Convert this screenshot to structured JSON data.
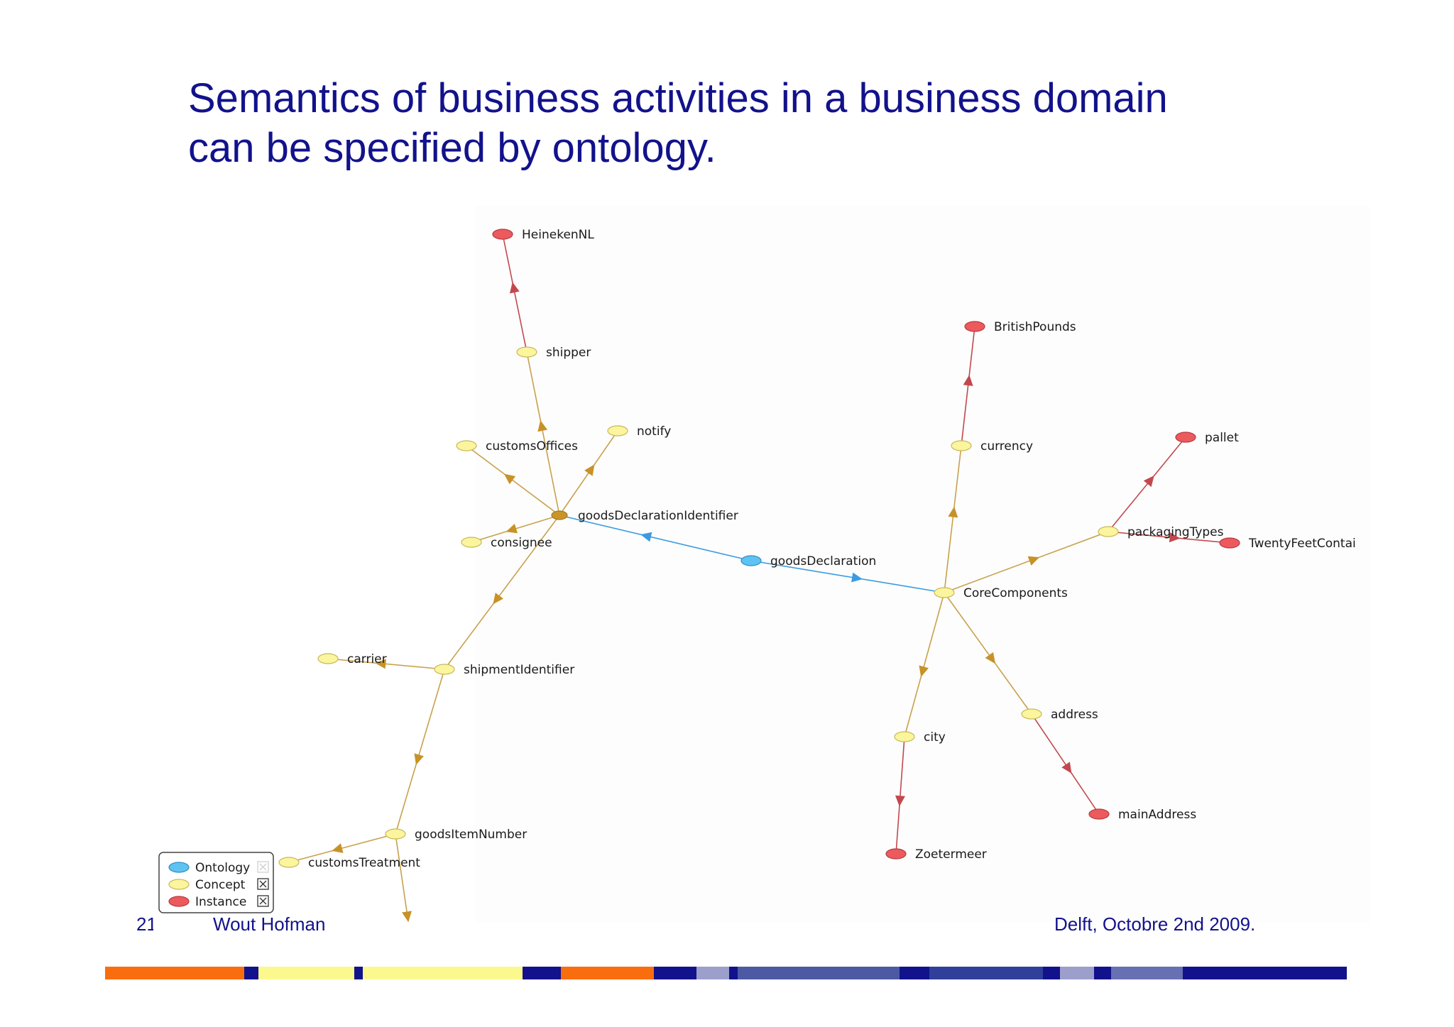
{
  "slide": {
    "title_line1": "Semantics of business activities in a business domain",
    "title_line2": "can be specified by ontology."
  },
  "colors": {
    "title": "#12128c",
    "ontology_node": "#5ec3f2",
    "concept_node": "#fbf59d",
    "instance_node": "#ec5a5e",
    "concept_edge": "#c8a14c",
    "concept_arrow": "#c79227",
    "instance_edge": "#c2484e",
    "ontology_edge": "#3a9be0"
  },
  "diagram": {
    "nodes": [
      {
        "id": "HeinekenNL",
        "label": "HeinekenNL",
        "type": "instance"
      },
      {
        "id": "shipper",
        "label": "shipper",
        "type": "concept"
      },
      {
        "id": "customsOffices",
        "label": "customsOffices",
        "type": "concept"
      },
      {
        "id": "notify",
        "label": "notify",
        "type": "concept"
      },
      {
        "id": "goodsDeclarationIdentifier",
        "label": "goodsDeclarationIdentifier",
        "type": "concept"
      },
      {
        "id": "consignee",
        "label": "consignee",
        "type": "concept"
      },
      {
        "id": "carrier",
        "label": "carrier",
        "type": "concept"
      },
      {
        "id": "shipmentIdentifier",
        "label": "shipmentIdentifier",
        "type": "concept"
      },
      {
        "id": "goodsItemNumber",
        "label": "goodsItemNumber",
        "type": "concept"
      },
      {
        "id": "customsTreatment",
        "label": "customsTreatment",
        "type": "concept"
      },
      {
        "id": "goodsDeclaration",
        "label": "goodsDeclaration",
        "type": "ontology"
      },
      {
        "id": "BritishPounds",
        "label": "BritishPounds",
        "type": "instance"
      },
      {
        "id": "currency",
        "label": "currency",
        "type": "concept"
      },
      {
        "id": "pallet",
        "label": "pallet",
        "type": "instance"
      },
      {
        "id": "packagingTypes",
        "label": "packagingTypes",
        "type": "concept"
      },
      {
        "id": "TwentyFeetContai",
        "label": "TwentyFeetContai",
        "type": "instance"
      },
      {
        "id": "CoreComponents",
        "label": "CoreComponents",
        "type": "concept"
      },
      {
        "id": "address",
        "label": "address",
        "type": "concept"
      },
      {
        "id": "city",
        "label": "city",
        "type": "concept"
      },
      {
        "id": "mainAddress",
        "label": "mainAddress",
        "type": "instance"
      },
      {
        "id": "Zoetermeer",
        "label": "Zoetermeer",
        "type": "instance"
      }
    ],
    "edges": [
      {
        "from": "shipper",
        "to": "HeinekenNL",
        "kind": "instance"
      },
      {
        "from": "goodsDeclarationIdentifier",
        "to": "shipper",
        "kind": "concept"
      },
      {
        "from": "goodsDeclarationIdentifier",
        "to": "customsOffices",
        "kind": "concept"
      },
      {
        "from": "goodsDeclarationIdentifier",
        "to": "notify",
        "kind": "concept"
      },
      {
        "from": "goodsDeclarationIdentifier",
        "to": "consignee",
        "kind": "concept"
      },
      {
        "from": "goodsDeclarationIdentifier",
        "to": "shipmentIdentifier",
        "kind": "concept"
      },
      {
        "from": "shipmentIdentifier",
        "to": "carrier",
        "kind": "concept"
      },
      {
        "from": "shipmentIdentifier",
        "to": "goodsItemNumber",
        "kind": "concept"
      },
      {
        "from": "goodsItemNumber",
        "to": "customsTreatment",
        "kind": "concept"
      },
      {
        "from": "goodsItemNumber",
        "to": "offscreen",
        "kind": "concept"
      },
      {
        "from": "goodsDeclaration",
        "to": "goodsDeclarationIdentifier",
        "kind": "ontology"
      },
      {
        "from": "goodsDeclaration",
        "to": "CoreComponents",
        "kind": "ontology"
      },
      {
        "from": "CoreComponents",
        "to": "currency",
        "kind": "concept"
      },
      {
        "from": "currency",
        "to": "BritishPounds",
        "kind": "instance"
      },
      {
        "from": "CoreComponents",
        "to": "packagingTypes",
        "kind": "concept"
      },
      {
        "from": "packagingTypes",
        "to": "pallet",
        "kind": "instance"
      },
      {
        "from": "packagingTypes",
        "to": "TwentyFeetContai",
        "kind": "instance"
      },
      {
        "from": "CoreComponents",
        "to": "address",
        "kind": "concept"
      },
      {
        "from": "CoreComponents",
        "to": "city",
        "kind": "concept"
      },
      {
        "from": "address",
        "to": "mainAddress",
        "kind": "instance"
      },
      {
        "from": "city",
        "to": "Zoetermeer",
        "kind": "instance"
      }
    ]
  },
  "legend": {
    "items": [
      {
        "label": "Ontology",
        "type": "ontology",
        "checked": false
      },
      {
        "label": "Concept",
        "type": "concept",
        "checked": true
      },
      {
        "label": "Instance",
        "type": "instance",
        "checked": true
      }
    ]
  },
  "footer": {
    "page": "21",
    "author": "Wout Hofman",
    "date": "Delft, Octobre 2nd 2009."
  },
  "color_bar": {
    "segments": [
      {
        "color": "#f96d0e",
        "weight": 196
      },
      {
        "color": "#12128c",
        "weight": 19
      },
      {
        "color": "#fbf88e",
        "weight": 135
      },
      {
        "color": "#12128c",
        "weight": 12
      },
      {
        "color": "#fbf88e",
        "weight": 225
      },
      {
        "color": "#12128c",
        "weight": 54
      },
      {
        "color": "#f96d0e",
        "weight": 130
      },
      {
        "color": "#12128c",
        "weight": 60
      },
      {
        "color": "#9c9fcb",
        "weight": 46
      },
      {
        "color": "#12128c",
        "weight": 12
      },
      {
        "color": "#4c5aa3",
        "weight": 227
      },
      {
        "color": "#12128c",
        "weight": 42
      },
      {
        "color": "#30409a",
        "weight": 160
      },
      {
        "color": "#12128c",
        "weight": 24
      },
      {
        "color": "#9c9fcb",
        "weight": 48
      },
      {
        "color": "#12128c",
        "weight": 24
      },
      {
        "color": "#6670b2",
        "weight": 100
      },
      {
        "color": "#12128c",
        "weight": 231
      }
    ]
  }
}
